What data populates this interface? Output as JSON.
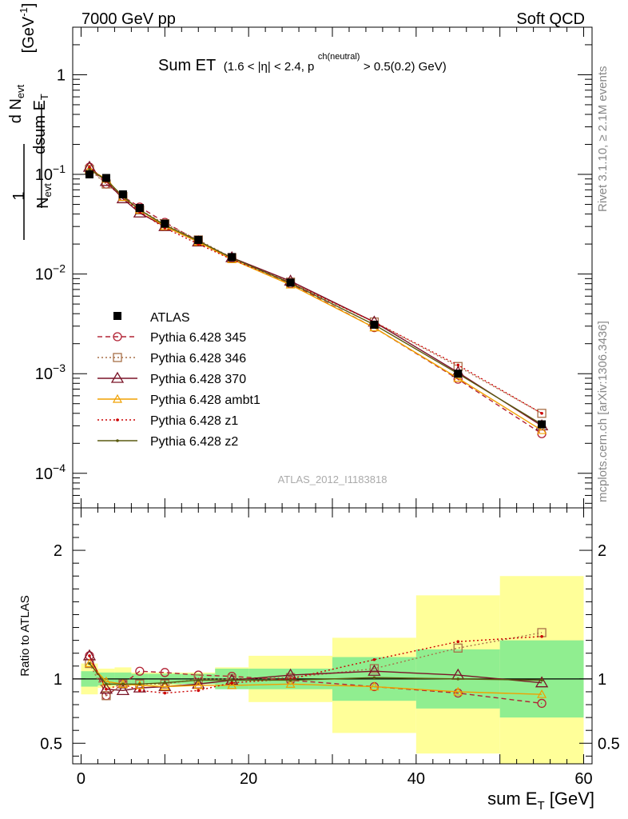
{
  "header": {
    "left": "7000 GeV pp",
    "right": "Soft QCD"
  },
  "title": {
    "main": "Sum ET",
    "cuts_a": "(1.6 < |η| < 2.4, p",
    "cuts_sup": "ch(neutral)",
    "cuts_b": " > 0.5(0.2) GeV)"
  },
  "side_text": {
    "right_top": "Rivet 3.1.10, ≥ 2.1M events",
    "right_bottom": "mcplots.cern.ch [arXiv:1306.3436]"
  },
  "watermark": "ATLAS_2012_I1183818",
  "colors": {
    "c345": "#b22234",
    "c346": "#a87048",
    "c370": "#7a1428",
    "cambt1": "#f0a000",
    "cz1": "#cc0000",
    "cz2": "#5a5a10",
    "band_outer": "#ffff99",
    "band_inner": "#90ee90"
  },
  "chart_data": {
    "type": "line",
    "xlabel": "sum E_T [GeV]",
    "ylabel_main": "1/N_evt dN_evt/dsum E_T [GeV^-1]",
    "ylabel_ratio": "Ratio to ATLAS",
    "xlim": [
      -1,
      61
    ],
    "main_ylim": [
      4.5e-05,
      3.0
    ],
    "main_yscale": "log",
    "ratio_ylim": [
      0.34,
      2.33
    ],
    "x_ticks": [
      0,
      20,
      40,
      60
    ],
    "x_tick_labels": [
      "0",
      "20",
      "40",
      "60"
    ],
    "main_yticks": [
      {
        "base": "10",
        "exp": "−4",
        "value": 0.0001
      },
      {
        "base": "10",
        "exp": "−3",
        "value": 0.001
      },
      {
        "base": "10",
        "exp": "−2",
        "value": 0.01
      },
      {
        "base": "10",
        "exp": "−1",
        "value": 0.1
      },
      {
        "base": "1",
        "exp": "",
        "value": 1
      }
    ],
    "ratio_yticks": [
      0.5,
      1,
      2
    ],
    "ratio_ytick_labels": [
      "0.5",
      "1",
      "2"
    ],
    "legend_position": "lower-left",
    "x": [
      1,
      3,
      5,
      7,
      10,
      14,
      18,
      25,
      35,
      45,
      55
    ],
    "bin_edges": [
      0,
      2,
      4,
      6,
      8,
      12,
      16,
      20,
      30,
      40,
      50,
      60
    ],
    "data": {
      "name": "ATLAS",
      "values": [
        0.1,
        0.092,
        0.063,
        0.046,
        0.032,
        0.022,
        0.0148,
        0.0082,
        0.0031,
        0.001,
        0.00031
      ]
    },
    "band_inner": [
      [
        0.94,
        1.06
      ],
      [
        0.95,
        1.05
      ],
      [
        0.95,
        1.05
      ],
      [
        0.96,
        1.04
      ],
      [
        0.96,
        1.04
      ],
      [
        0.96,
        1.04
      ],
      [
        0.92,
        1.08
      ],
      [
        0.92,
        1.08
      ],
      [
        0.83,
        1.17
      ],
      [
        0.77,
        1.23
      ],
      [
        0.7,
        1.3
      ]
    ],
    "band_outer": [
      [
        0.88,
        1.12
      ],
      [
        0.93,
        1.08
      ],
      [
        0.94,
        1.09
      ],
      [
        0.95,
        1.05
      ],
      [
        0.95,
        1.05
      ],
      [
        0.96,
        1.05
      ],
      [
        0.94,
        1.09
      ],
      [
        0.82,
        1.18
      ],
      [
        0.58,
        1.32
      ],
      [
        0.42,
        1.65
      ],
      [
        0.34,
        1.8
      ]
    ],
    "series": [
      {
        "name": "Pythia 6.428 345",
        "color_key": "c345",
        "dash": "6,4",
        "marker": "circle",
        "values": [
          0.118,
          0.08,
          0.06,
          0.047,
          0.033,
          0.0215,
          0.0145,
          0.008,
          0.0029,
          0.00088,
          0.00025
        ],
        "ratio": [
          1.18,
          0.87,
          0.96,
          1.06,
          1.05,
          1.03,
          1.02,
          0.99,
          0.94,
          0.89,
          0.81
        ]
      },
      {
        "name": "Pythia 6.428 346",
        "color_key": "c346",
        "dash": "2,3",
        "marker": "square",
        "values": [
          0.112,
          0.08,
          0.06,
          0.044,
          0.032,
          0.022,
          0.0146,
          0.0083,
          0.0033,
          0.00118,
          0.0004
        ],
        "ratio": [
          1.12,
          0.87,
          0.96,
          0.96,
          0.96,
          1.0,
          1.0,
          1.01,
          1.08,
          1.24,
          1.36
        ]
      },
      {
        "name": "Pythia 6.428 370",
        "color_key": "c370",
        "dash": "",
        "marker": "triangle",
        "values": [
          0.118,
          0.085,
          0.057,
          0.041,
          0.03,
          0.021,
          0.0146,
          0.0085,
          0.0033,
          0.00103,
          0.0003
        ],
        "ratio": [
          1.18,
          0.92,
          0.91,
          0.93,
          0.94,
          0.96,
          0.99,
          1.03,
          1.06,
          1.03,
          0.97
        ]
      },
      {
        "name": "Pythia 6.428 ambt1",
        "color_key": "cambt1",
        "dash": "",
        "marker": "triangle-small",
        "values": [
          0.112,
          0.09,
          0.059,
          0.044,
          0.03,
          0.021,
          0.014,
          0.0078,
          0.0029,
          0.0009,
          0.00027
        ],
        "ratio": [
          1.12,
          0.98,
          0.96,
          0.95,
          0.94,
          0.95,
          0.95,
          0.96,
          0.94,
          0.9,
          0.88
        ]
      },
      {
        "name": "Pythia 6.428 z1",
        "color_key": "cz1",
        "dash": "2,3",
        "marker": "dot",
        "values": [
          0.118,
          0.085,
          0.06,
          0.042,
          0.029,
          0.02,
          0.014,
          0.0082,
          0.0033,
          0.00122,
          0.0004
        ],
        "ratio": [
          1.18,
          0.92,
          0.96,
          0.91,
          0.89,
          0.91,
          0.97,
          1.0,
          1.15,
          1.29,
          1.33
        ]
      },
      {
        "name": "Pythia 6.428 z2",
        "color_key": "cz2",
        "dash": "",
        "marker": "dot",
        "values": [
          0.112,
          0.088,
          0.06,
          0.044,
          0.031,
          0.0215,
          0.0145,
          0.0081,
          0.0031,
          0.001,
          0.00031
        ],
        "ratio": [
          1.12,
          0.96,
          0.96,
          0.96,
          0.97,
          0.99,
          0.99,
          0.99,
          1.01,
          1.0,
          0.99
        ]
      }
    ]
  }
}
